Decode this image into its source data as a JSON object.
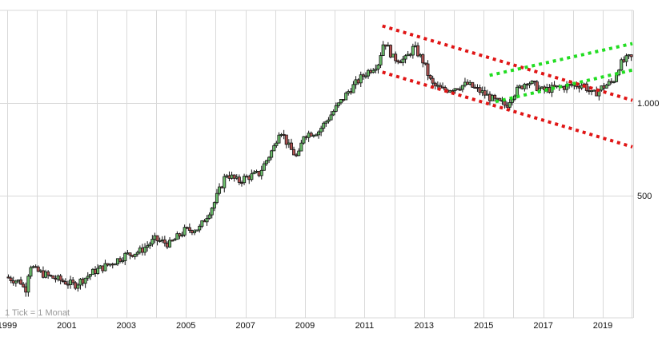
{
  "chart_data": {
    "type": "candlestick",
    "title": "",
    "xlabel": "",
    "ylabel": "",
    "y_scale": "log",
    "tick_note": "1 Tick = 1 Monat",
    "x_tick_labels": [
      "1999",
      "2001",
      "2003",
      "2005",
      "2007",
      "2009",
      "2011",
      "2013",
      "2015",
      "2017",
      "2019"
    ],
    "x_range": [
      1999.0,
      2020.0
    ],
    "y_tick_labels": [
      {
        "label": "1.000",
        "value": 1000
      },
      {
        "label": "500",
        "value": 500
      }
    ],
    "grid": true,
    "colors": {
      "up_candle": "#6cc06c",
      "down_candle": "#b35454",
      "candle_outline": "#111111",
      "grid": "#d9d9d9",
      "resistance_channel": "#e01515",
      "support_channel": "#22dd22"
    },
    "price_path": [
      {
        "t": 1999.0,
        "close": 272
      },
      {
        "t": 1999.5,
        "close": 262
      },
      {
        "t": 1999.65,
        "close": 244
      },
      {
        "t": 1999.8,
        "close": 300
      },
      {
        "t": 2000.0,
        "close": 285
      },
      {
        "t": 2000.5,
        "close": 272
      },
      {
        "t": 2001.0,
        "close": 262
      },
      {
        "t": 2001.3,
        "close": 256
      },
      {
        "t": 2001.6,
        "close": 268
      },
      {
        "t": 2002.0,
        "close": 285
      },
      {
        "t": 2002.5,
        "close": 300
      },
      {
        "t": 2003.0,
        "close": 320
      },
      {
        "t": 2003.5,
        "close": 330
      },
      {
        "t": 2004.0,
        "close": 360
      },
      {
        "t": 2004.5,
        "close": 348
      },
      {
        "t": 2005.0,
        "close": 385
      },
      {
        "t": 2005.5,
        "close": 392
      },
      {
        "t": 2006.0,
        "close": 475
      },
      {
        "t": 2006.4,
        "close": 590
      },
      {
        "t": 2006.8,
        "close": 555
      },
      {
        "t": 2007.0,
        "close": 570
      },
      {
        "t": 2007.5,
        "close": 590
      },
      {
        "t": 2008.0,
        "close": 720
      },
      {
        "t": 2008.2,
        "close": 830
      },
      {
        "t": 2008.5,
        "close": 720
      },
      {
        "t": 2008.8,
        "close": 660
      },
      {
        "t": 2009.0,
        "close": 790
      },
      {
        "t": 2009.5,
        "close": 810
      },
      {
        "t": 2010.0,
        "close": 940
      },
      {
        "t": 2010.5,
        "close": 1090
      },
      {
        "t": 2011.0,
        "close": 1230
      },
      {
        "t": 2011.5,
        "close": 1350
      },
      {
        "t": 2011.7,
        "close": 1600
      },
      {
        "t": 2012.0,
        "close": 1400
      },
      {
        "t": 2012.4,
        "close": 1380
      },
      {
        "t": 2012.7,
        "close": 1520
      },
      {
        "t": 2013.0,
        "close": 1370
      },
      {
        "t": 2013.3,
        "close": 1150
      },
      {
        "t": 2013.7,
        "close": 1100
      },
      {
        "t": 2014.0,
        "close": 1120
      },
      {
        "t": 2014.5,
        "close": 1150
      },
      {
        "t": 2015.0,
        "close": 1080
      },
      {
        "t": 2015.4,
        "close": 1020
      },
      {
        "t": 2015.8,
        "close": 980
      },
      {
        "t": 2016.0,
        "close": 1060
      },
      {
        "t": 2016.5,
        "close": 1180
      },
      {
        "t": 2017.0,
        "close": 1100
      },
      {
        "t": 2017.5,
        "close": 1120
      },
      {
        "t": 2018.0,
        "close": 1140
      },
      {
        "t": 2018.4,
        "close": 1150
      },
      {
        "t": 2018.7,
        "close": 1060
      },
      {
        "t": 2019.0,
        "close": 1120
      },
      {
        "t": 2019.4,
        "close": 1180
      },
      {
        "t": 2019.6,
        "close": 1330
      },
      {
        "t": 2019.9,
        "close": 1400
      }
    ],
    "trend_lines": [
      {
        "name": "resistance-upper",
        "color": "red",
        "style": "dotted",
        "from": {
          "t": 2011.6,
          "price": 1780
        },
        "to": {
          "t": 2020.0,
          "price": 1020
        }
      },
      {
        "name": "resistance-lower",
        "color": "red",
        "style": "dotted",
        "from": {
          "t": 2011.6,
          "price": 1260
        },
        "to": {
          "t": 2020.0,
          "price": 720
        }
      },
      {
        "name": "support-upper",
        "color": "green",
        "style": "dotted",
        "from": {
          "t": 2015.2,
          "price": 1230
        },
        "to": {
          "t": 2020.0,
          "price": 1560
        }
      },
      {
        "name": "support-lower",
        "color": "green",
        "style": "dotted",
        "from": {
          "t": 2015.4,
          "price": 1010
        },
        "to": {
          "t": 2020.0,
          "price": 1280
        }
      }
    ]
  },
  "labels": {
    "tick_note": "1 Tick = 1 Monat"
  }
}
